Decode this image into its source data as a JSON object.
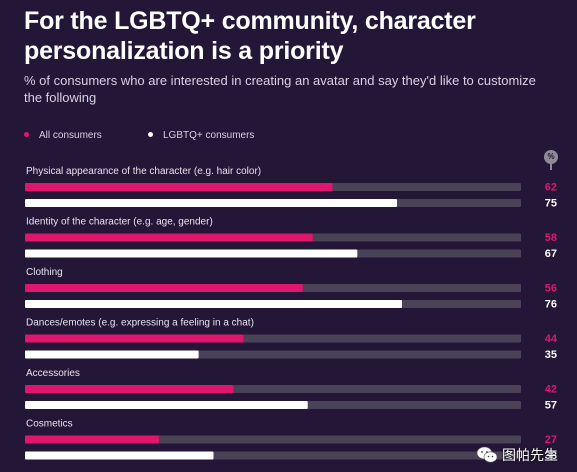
{
  "title": "For the LGBTQ+ community, character personalization is a priority",
  "subtitle": "% of consumers who are interested in creating an avatar and say they'd like to customize the following",
  "legend": {
    "all": "All consumers",
    "lgbtq": "LGBTQ+ consumers"
  },
  "unit_badge": "%",
  "colors": {
    "background": "#231636",
    "track": "#4a4358",
    "all": "#e0156e",
    "lgbtq": "#ffffff",
    "label": "#e8e4ee"
  },
  "watermark": {
    "text": "图帕先生",
    "icon": "wechat-icon"
  },
  "chart_data": {
    "type": "bar",
    "orientation": "horizontal",
    "categories": [
      "Physical appearance of the character (e.g. hair color)",
      "Identity of the character (e.g. age, gender)",
      "Clothing",
      "Dances/emotes (e.g. expressing a feeling in a chat)",
      "Accessories",
      "Cosmetics"
    ],
    "series": [
      {
        "name": "All consumers",
        "values": [
          62,
          58,
          56,
          44,
          42,
          27
        ]
      },
      {
        "name": "LGBTQ+ consumers",
        "values": [
          75,
          67,
          76,
          35,
          57,
          38
        ]
      }
    ],
    "xlim": [
      0,
      100
    ],
    "grid": false,
    "legend_position": "top-left"
  }
}
